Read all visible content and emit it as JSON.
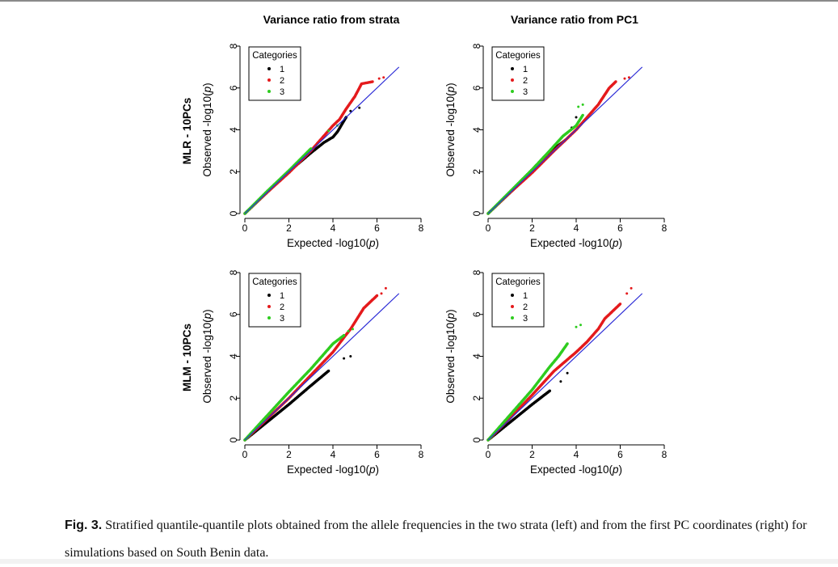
{
  "column_titles": [
    "Variance ratio from strata",
    "Variance ratio from PC1"
  ],
  "row_titles": [
    "MLR - 10PCs",
    "MLM - 10PCs"
  ],
  "legend": {
    "title": "Categories",
    "labels": [
      "1",
      "2",
      "3"
    ]
  },
  "colors": {
    "cat1": "#000000",
    "cat2": "#e41a1c",
    "cat3": "#2ecc1f",
    "reference": "#2b2bd6",
    "axis": "#000000"
  },
  "caption": {
    "label": "Fig. 3.",
    "text": " Stratified quantile-quantile plots obtained from the allele frequencies in the two strata (left) and from the first PC coordinates (right) for simulations based on South Benin data."
  },
  "chart_data": [
    {
      "type": "scatter",
      "panel": "MLR - 10PCs / Variance ratio from strata",
      "xlabel": "Expected -log10(p)",
      "ylabel": "Observed -log10(p)",
      "xlim": [
        0,
        8
      ],
      "ylim": [
        0,
        8
      ],
      "xticks": [
        0,
        2,
        4,
        6,
        8
      ],
      "yticks": [
        0,
        2,
        4,
        6,
        8
      ],
      "reference_line": [
        [
          0,
          0
        ],
        [
          7,
          7
        ]
      ],
      "series": [
        {
          "name": "1",
          "points": [
            [
              0,
              0
            ],
            [
              1,
              1
            ],
            [
              2,
              2
            ],
            [
              3,
              2.9
            ],
            [
              3.6,
              3.4
            ],
            [
              4,
              3.65
            ],
            [
              4.2,
              3.9
            ],
            [
              4.6,
              4.6
            ],
            [
              4.8,
              4.9
            ],
            [
              5.2,
              5.05
            ]
          ]
        },
        {
          "name": "2",
          "points": [
            [
              0,
              0
            ],
            [
              1,
              1
            ],
            [
              2,
              1.95
            ],
            [
              3,
              3
            ],
            [
              4,
              4.2
            ],
            [
              4.3,
              4.5
            ],
            [
              4.6,
              5.0
            ],
            [
              5.0,
              5.6
            ],
            [
              5.3,
              6.2
            ],
            [
              5.8,
              6.3
            ],
            [
              6.1,
              6.45
            ],
            [
              6.3,
              6.5
            ]
          ]
        },
        {
          "name": "3",
          "points": [
            [
              0,
              0
            ],
            [
              1,
              1.05
            ],
            [
              2,
              2.05
            ],
            [
              3,
              3.1
            ],
            [
              3.8,
              3.95
            ],
            [
              4.2,
              4.2
            ]
          ]
        }
      ]
    },
    {
      "type": "scatter",
      "panel": "MLR - 10PCs / Variance ratio from PC1",
      "xlabel": "Expected -log10(p)",
      "ylabel": "Observed -log10(p)",
      "xlim": [
        0,
        8
      ],
      "ylim": [
        0,
        8
      ],
      "xticks": [
        0,
        2,
        4,
        6,
        8
      ],
      "yticks": [
        0,
        2,
        4,
        6,
        8
      ],
      "reference_line": [
        [
          0,
          0
        ],
        [
          7,
          7
        ]
      ],
      "series": [
        {
          "name": "1",
          "points": [
            [
              0,
              0
            ],
            [
              1,
              1
            ],
            [
              2,
              2
            ],
            [
              3,
              3.1
            ],
            [
              3.5,
              3.5
            ],
            [
              3.8,
              4.1
            ],
            [
              4.0,
              4.6
            ]
          ]
        },
        {
          "name": "2",
          "points": [
            [
              0,
              0
            ],
            [
              1,
              1
            ],
            [
              2,
              1.95
            ],
            [
              3,
              3.0
            ],
            [
              4,
              4.0
            ],
            [
              4.5,
              4.6
            ],
            [
              5,
              5.2
            ],
            [
              5.5,
              6.0
            ],
            [
              5.8,
              6.3
            ],
            [
              6.2,
              6.45
            ],
            [
              6.4,
              6.5
            ]
          ]
        },
        {
          "name": "3",
          "points": [
            [
              0,
              0
            ],
            [
              1,
              1.05
            ],
            [
              2,
              2.1
            ],
            [
              2.8,
              3.0
            ],
            [
              3.4,
              3.7
            ],
            [
              4.0,
              4.2
            ],
            [
              4.3,
              4.7
            ],
            [
              4.1,
              5.1
            ],
            [
              4.3,
              5.2
            ]
          ]
        }
      ]
    },
    {
      "type": "scatter",
      "panel": "MLM - 10PCs / Variance ratio from strata",
      "xlabel": "Expected -log10(p)",
      "ylabel": "Observed -log10(p)",
      "xlim": [
        0,
        8
      ],
      "ylim": [
        0,
        8
      ],
      "xticks": [
        0,
        2,
        4,
        6,
        8
      ],
      "yticks": [
        0,
        2,
        4,
        6,
        8
      ],
      "reference_line": [
        [
          0,
          0
        ],
        [
          7,
          7
        ]
      ],
      "series": [
        {
          "name": "1",
          "points": [
            [
              0,
              0
            ],
            [
              1,
              0.85
            ],
            [
              2,
              1.7
            ],
            [
              3,
              2.6
            ],
            [
              3.8,
              3.3
            ],
            [
              4.5,
              3.9
            ],
            [
              4.8,
              4.0
            ]
          ]
        },
        {
          "name": "2",
          "points": [
            [
              0,
              0
            ],
            [
              1,
              1
            ],
            [
              2,
              2
            ],
            [
              3,
              3.1
            ],
            [
              4,
              4.2
            ],
            [
              4.5,
              4.9
            ],
            [
              4.8,
              5.3
            ],
            [
              5.1,
              5.8
            ],
            [
              5.4,
              6.3
            ],
            [
              5.7,
              6.6
            ],
            [
              6.0,
              6.9
            ],
            [
              6.2,
              7.0
            ],
            [
              6.4,
              7.25
            ]
          ]
        },
        {
          "name": "3",
          "points": [
            [
              0,
              0
            ],
            [
              1,
              1.15
            ],
            [
              2,
              2.3
            ],
            [
              3,
              3.4
            ],
            [
              4,
              4.6
            ],
            [
              4.5,
              5.0
            ],
            [
              4.7,
              5.2
            ],
            [
              4.9,
              5.3
            ]
          ]
        }
      ]
    },
    {
      "type": "scatter",
      "panel": "MLM - 10PCs / Variance ratio from PC1",
      "xlabel": "Expected -log10(p)",
      "ylabel": "Observed -log10(p)",
      "xlim": [
        0,
        8
      ],
      "ylim": [
        0,
        8
      ],
      "xticks": [
        0,
        2,
        4,
        6,
        8
      ],
      "yticks": [
        0,
        2,
        4,
        6,
        8
      ],
      "reference_line": [
        [
          0,
          0
        ],
        [
          7,
          7
        ]
      ],
      "series": [
        {
          "name": "1",
          "points": [
            [
              0,
              0
            ],
            [
              1,
              0.85
            ],
            [
              2,
              1.7
            ],
            [
              2.8,
              2.35
            ],
            [
              3.3,
              2.8
            ],
            [
              3.6,
              3.2
            ]
          ]
        },
        {
          "name": "2",
          "points": [
            [
              0,
              0
            ],
            [
              1,
              1.05
            ],
            [
              2,
              2.15
            ],
            [
              3,
              3.3
            ],
            [
              4,
              4.2
            ],
            [
              4.5,
              4.7
            ],
            [
              5,
              5.3
            ],
            [
              5.3,
              5.8
            ],
            [
              5.5,
              6.0
            ],
            [
              5.8,
              6.3
            ],
            [
              6.0,
              6.5
            ],
            [
              6.3,
              7.0
            ],
            [
              6.5,
              7.25
            ]
          ]
        },
        {
          "name": "3",
          "points": [
            [
              0,
              0
            ],
            [
              1,
              1.2
            ],
            [
              2,
              2.4
            ],
            [
              2.8,
              3.5
            ],
            [
              3.2,
              4.0
            ],
            [
              3.4,
              4.3
            ],
            [
              3.6,
              4.6
            ],
            [
              4.0,
              5.4
            ],
            [
              4.2,
              5.5
            ]
          ]
        }
      ]
    }
  ]
}
